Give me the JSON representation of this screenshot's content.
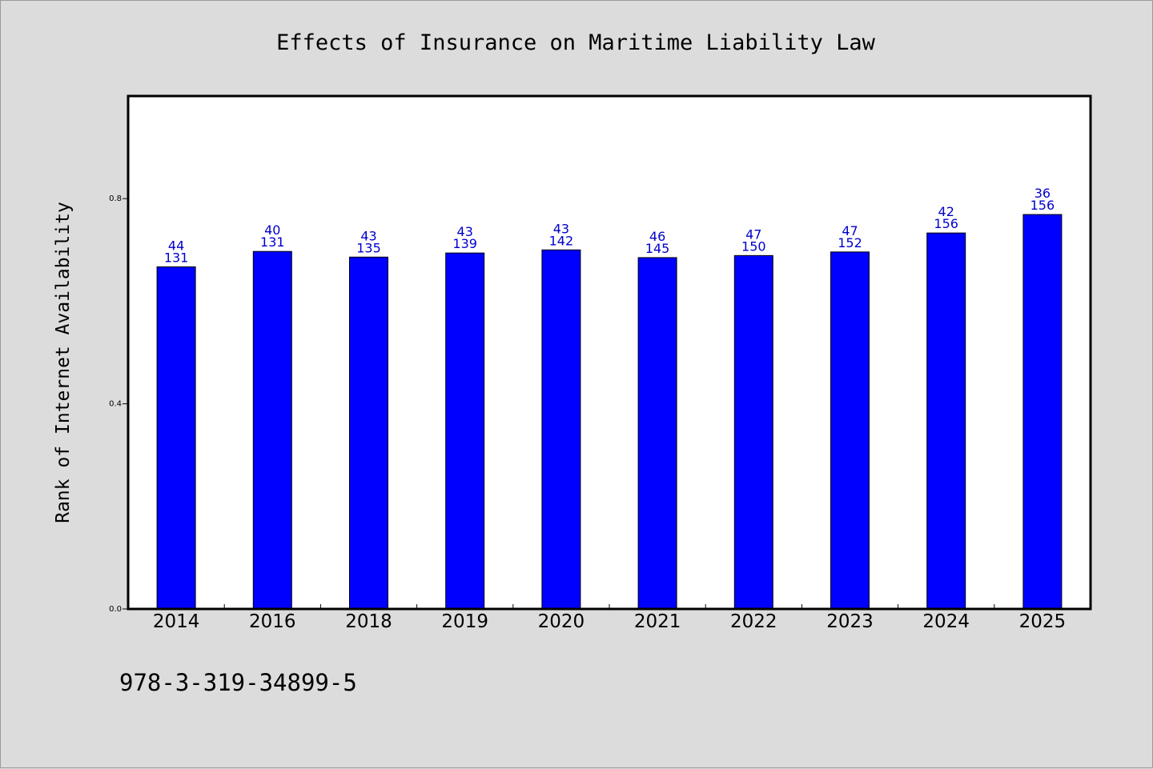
{
  "chart_data": {
    "type": "bar",
    "title": "Effects of Insurance on Maritime Liability Law",
    "xlabel": "",
    "ylabel": "Rank of Internet Availability",
    "categories": [
      "2014",
      "2016",
      "2018",
      "2019",
      "2020",
      "2021",
      "2022",
      "2023",
      "2024",
      "2025"
    ],
    "values": [
      0.667,
      0.697,
      0.686,
      0.694,
      0.7,
      0.685,
      0.689,
      0.696,
      0.733,
      0.769
    ],
    "labels_top": [
      "44",
      "40",
      "43",
      "43",
      "43",
      "46",
      "47",
      "47",
      "42",
      "36"
    ],
    "labels_bottom": [
      "131",
      "131",
      "135",
      "139",
      "142",
      "145",
      "150",
      "152",
      "156",
      "156"
    ],
    "ylim": [
      0.0,
      1.0
    ],
    "yticks": [
      0.0,
      0.4,
      0.8
    ],
    "ytick_labels": [
      "0.0",
      "0.4",
      "0.8"
    ],
    "grid": false,
    "legend": "none",
    "bar_color": "#0000ff",
    "label_color": "#0000cc"
  },
  "footnote": "978-3-319-34899-5"
}
